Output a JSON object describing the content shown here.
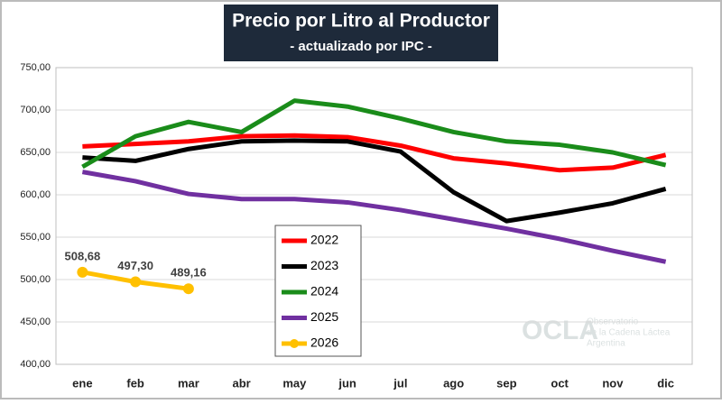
{
  "chart_data": {
    "type": "line",
    "title": "Precio por Litro al Productor",
    "subtitle": "- actualizado por IPC -",
    "categories": [
      "ene",
      "feb",
      "mar",
      "abr",
      "may",
      "jun",
      "jul",
      "ago",
      "sep",
      "oct",
      "nov",
      "dic"
    ],
    "series": [
      {
        "name": "2022",
        "color": "#ff0000",
        "values": [
          657,
          660,
          663,
          669,
          670,
          668,
          658,
          643,
          637,
          629,
          632,
          647
        ]
      },
      {
        "name": "2023",
        "color": "#000000",
        "values": [
          644,
          640,
          654,
          663,
          664,
          663,
          651,
          603,
          569,
          579,
          590,
          607
        ]
      },
      {
        "name": "2024",
        "color": "#1a8c1a",
        "values": [
          633,
          669,
          686,
          674,
          711,
          704,
          690,
          674,
          663,
          659,
          650,
          635
        ]
      },
      {
        "name": "2025",
        "color": "#7030a0",
        "values": [
          627,
          616,
          601,
          595,
          595,
          591,
          582,
          571,
          560,
          548,
          534,
          521
        ]
      },
      {
        "name": "2026",
        "color": "#ffc000",
        "markers": true,
        "values": [
          508.68,
          497.3,
          489.16,
          null,
          null,
          null,
          null,
          null,
          null,
          null,
          null,
          null
        ],
        "value_labels": [
          "508,68",
          "497,30",
          "489,16",
          null,
          null,
          null,
          null,
          null,
          null,
          null,
          null,
          null
        ]
      }
    ],
    "ylim": [
      400,
      750
    ],
    "yticks": [
      {
        "value": 400,
        "label": "400,00"
      },
      {
        "value": 450,
        "label": "450,00"
      },
      {
        "value": 500,
        "label": "500,00"
      },
      {
        "value": 550,
        "label": "550,00"
      },
      {
        "value": 600,
        "label": "600,00"
      },
      {
        "value": 650,
        "label": "650,00"
      },
      {
        "value": 700,
        "label": "700,00"
      },
      {
        "value": 750,
        "label": "750,00"
      }
    ],
    "grid": true,
    "watermark": {
      "name": "OCLA",
      "lines": [
        "Observatorio",
        "de la Cadena Láctea",
        "Argentina"
      ]
    }
  }
}
